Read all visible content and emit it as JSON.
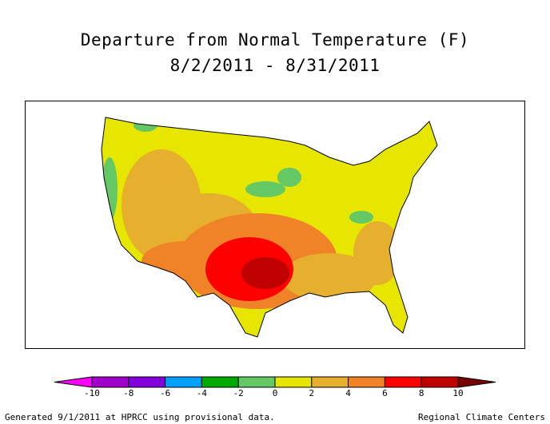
{
  "title": {
    "line1": "Departure from Normal Temperature (F)",
    "line2": "8/2/2011 - 8/31/2011"
  },
  "legend": {
    "ticks": [
      "-10",
      "-8",
      "-6",
      "-4",
      "-2",
      "0",
      "2",
      "4",
      "6",
      "8",
      "10"
    ],
    "colors": [
      "#a000c8",
      "#8200dc",
      "#00a0ff",
      "#00aa00",
      "#64c864",
      "#e6e600",
      "#e6af2d",
      "#f08228",
      "#ff0000",
      "#c00000"
    ],
    "below_color": "#ff00ff",
    "above_color": "#780000"
  },
  "footer": {
    "left": "Generated 9/1/2011 at HPRCC using provisional data.",
    "right": "Regional Climate Centers"
  }
}
